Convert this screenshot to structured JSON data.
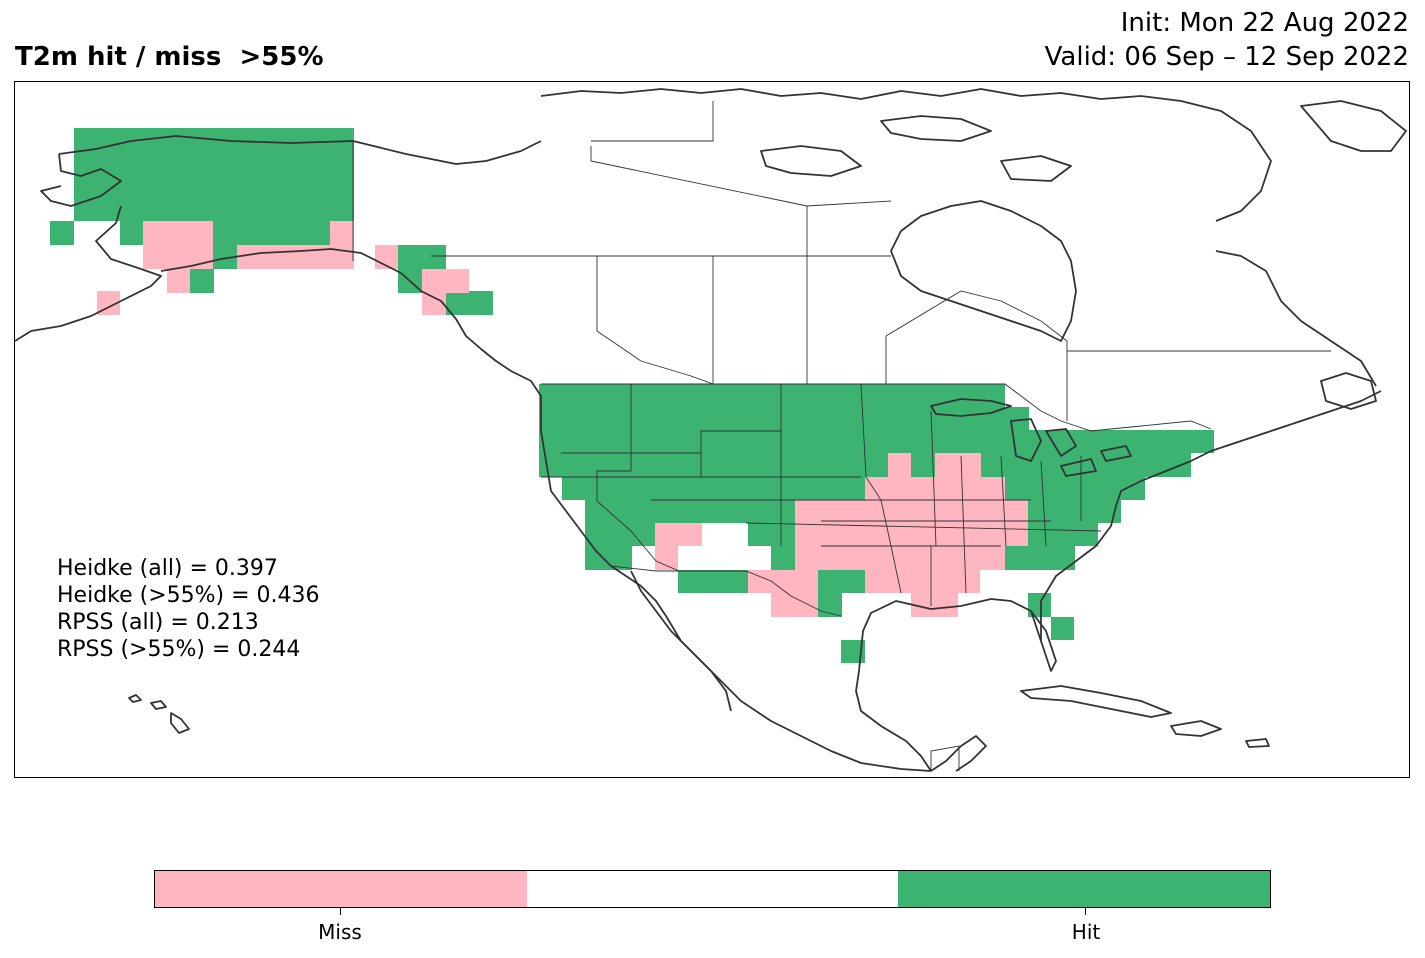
{
  "header": {
    "title": "T2m hit / miss  >55%",
    "init": "Init: Mon 22 Aug 2022",
    "valid": "Valid: 06 Sep – 12 Sep 2022"
  },
  "stats": [
    "Heidke (all) = 0.397",
    "Heidke (>55%) = 0.436",
    "RPSS (all) = 0.213",
    "RPSS (>55%) = 0.244"
  ],
  "colors": {
    "hit": "#3cb371",
    "miss": "#ffb6c1",
    "neutral": "#ffffff",
    "coast": "#333333"
  },
  "colorbar": {
    "labels": [
      "Miss",
      "Hit"
    ]
  }
}
